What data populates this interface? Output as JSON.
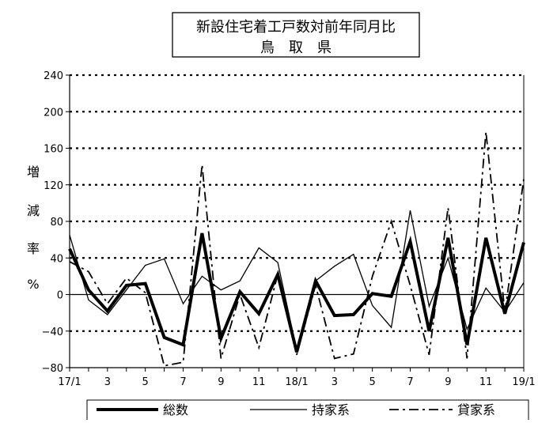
{
  "chart_data": {
    "type": "line",
    "title": "新設住宅着工戸数対前年同月比",
    "subtitle": "鳥　取　県",
    "ylabel_chars": [
      "増",
      "減",
      "率",
      "%"
    ],
    "ylim": [
      -80,
      240
    ],
    "yticks": [
      -80,
      -40,
      0,
      40,
      80,
      120,
      160,
      200,
      240
    ],
    "xtick_labels": [
      "17/1",
      "3",
      "5",
      "7",
      "9",
      "11",
      "18/1",
      "3",
      "5",
      "7",
      "9",
      "11",
      "19/1"
    ],
    "x": [
      "17/1",
      "17/2",
      "17/3",
      "17/4",
      "17/5",
      "17/6",
      "17/7",
      "17/8",
      "17/9",
      "17/10",
      "17/11",
      "17/12",
      "18/1",
      "18/2",
      "18/3",
      "18/4",
      "18/5",
      "18/6",
      "18/7",
      "18/8",
      "18/9",
      "18/10",
      "18/11",
      "18/12",
      "19/1"
    ],
    "grid": "horizontal-dotted",
    "legend": "bottom",
    "series": [
      {
        "name": "総数",
        "style": "thick-solid",
        "values": [
          50,
          5,
          -18,
          10,
          12,
          -47,
          -55,
          67,
          -48,
          3,
          -21,
          22,
          -63,
          15,
          -23,
          -22,
          1,
          -2,
          58,
          -40,
          62,
          -55,
          62,
          -21,
          57
        ]
      },
      {
        "name": "持家系",
        "style": "thin-solid",
        "values": [
          65,
          -6,
          -22,
          5,
          32,
          39,
          -10,
          20,
          5,
          15,
          51,
          35,
          -61,
          15,
          31,
          44,
          -12,
          -36,
          92,
          -13,
          40,
          -38,
          7,
          -19,
          13
        ]
      },
      {
        "name": "貸家系",
        "style": "dash-dot",
        "values": [
          36,
          25,
          -10,
          18,
          2,
          -78,
          -74,
          142,
          -70,
          0,
          -58,
          22,
          -66,
          10,
          -70,
          -65,
          20,
          80,
          10,
          -66,
          95,
          -70,
          178,
          -19,
          126
        ]
      }
    ]
  }
}
